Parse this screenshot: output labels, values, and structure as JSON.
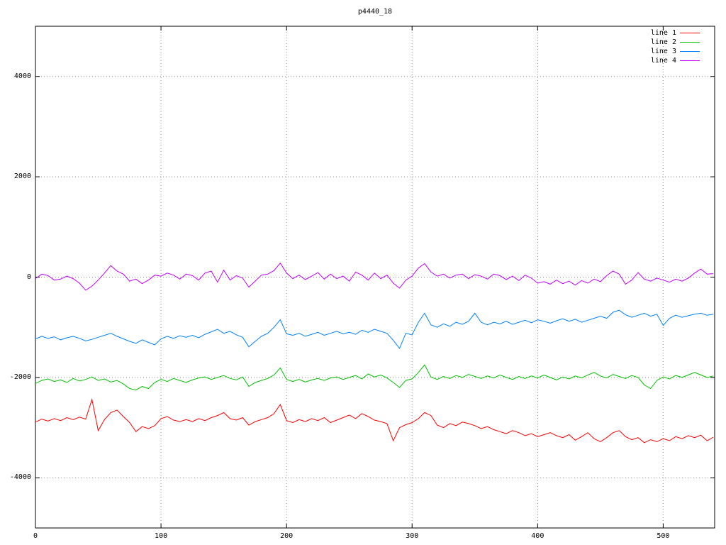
{
  "chart_data": {
    "type": "line",
    "title": "p4440_18",
    "xlabel": "",
    "ylabel": "",
    "xlim": [
      0,
      541
    ],
    "ylim": [
      -5000,
      5000
    ],
    "xticks": [
      0,
      100,
      200,
      300,
      400,
      500
    ],
    "yticks": [
      -4000,
      -2000,
      0,
      2000,
      4000
    ],
    "grid": "dotted",
    "legend_position": "top-right-inside",
    "background_color": "#ffffff",
    "border_color": "#000000",
    "grid_color": "#888888",
    "x_start": 0,
    "x_step": 5,
    "series": [
      {
        "name": "line 1",
        "color": "#ff0000",
        "values": [
          -2890,
          -2830,
          -2870,
          -2820,
          -2860,
          -2800,
          -2840,
          -2790,
          -2830,
          -2440,
          -3060,
          -2840,
          -2700,
          -2650,
          -2780,
          -2900,
          -3080,
          -2980,
          -3020,
          -2960,
          -2820,
          -2780,
          -2850,
          -2880,
          -2840,
          -2880,
          -2820,
          -2860,
          -2800,
          -2760,
          -2700,
          -2820,
          -2850,
          -2800,
          -2950,
          -2880,
          -2840,
          -2800,
          -2720,
          -2540,
          -2860,
          -2900,
          -2840,
          -2880,
          -2820,
          -2860,
          -2800,
          -2900,
          -2850,
          -2800,
          -2750,
          -2820,
          -2720,
          -2780,
          -2850,
          -2880,
          -2920,
          -3260,
          -3000,
          -2940,
          -2900,
          -2820,
          -2700,
          -2760,
          -2950,
          -3000,
          -2920,
          -2960,
          -2890,
          -2920,
          -2960,
          -3020,
          -2980,
          -3040,
          -3080,
          -3120,
          -3060,
          -3100,
          -3160,
          -3120,
          -3180,
          -3140,
          -3100,
          -3160,
          -3200,
          -3140,
          -3250,
          -3180,
          -3100,
          -3220,
          -3280,
          -3200,
          -3100,
          -3060,
          -3180,
          -3240,
          -3200,
          -3300,
          -3240,
          -3280,
          -3220,
          -3260,
          -3180,
          -3220,
          -3160,
          -3200,
          -3150,
          -3260,
          -3190
        ]
      },
      {
        "name": "line 2",
        "color": "#00c000",
        "values": [
          -2120,
          -2060,
          -2030,
          -2080,
          -2050,
          -2100,
          -2020,
          -2070,
          -2040,
          -1990,
          -2060,
          -2030,
          -2090,
          -2060,
          -2130,
          -2220,
          -2250,
          -2180,
          -2220,
          -2100,
          -2040,
          -2080,
          -2020,
          -2060,
          -2100,
          -2050,
          -2010,
          -1990,
          -2040,
          -2000,
          -1960,
          -2020,
          -2050,
          -1990,
          -2180,
          -2100,
          -2060,
          -2020,
          -1950,
          -1810,
          -2040,
          -2080,
          -2040,
          -2090,
          -2050,
          -2020,
          -2060,
          -2010,
          -1990,
          -2040,
          -2000,
          -1960,
          -2030,
          -1930,
          -1990,
          -1950,
          -2010,
          -2100,
          -2200,
          -2060,
          -2030,
          -1900,
          -1750,
          -1990,
          -2040,
          -1980,
          -2020,
          -1960,
          -2000,
          -1940,
          -1980,
          -2020,
          -1970,
          -2010,
          -1950,
          -2000,
          -2040,
          -1980,
          -2020,
          -1970,
          -2010,
          -1950,
          -2000,
          -2050,
          -1990,
          -2030,
          -1970,
          -2010,
          -1950,
          -1900,
          -1970,
          -2010,
          -1940,
          -1980,
          -2020,
          -1960,
          -2000,
          -2150,
          -2220,
          -2060,
          -1990,
          -2030,
          -1960,
          -2000,
          -1950,
          -1900,
          -1950,
          -2000,
          -1970
        ]
      },
      {
        "name": "line 3",
        "color": "#0080ff",
        "values": [
          -1230,
          -1180,
          -1220,
          -1190,
          -1250,
          -1210,
          -1180,
          -1220,
          -1270,
          -1240,
          -1200,
          -1160,
          -1120,
          -1180,
          -1230,
          -1280,
          -1320,
          -1250,
          -1300,
          -1350,
          -1230,
          -1180,
          -1220,
          -1170,
          -1200,
          -1160,
          -1210,
          -1140,
          -1090,
          -1040,
          -1120,
          -1080,
          -1150,
          -1200,
          -1390,
          -1280,
          -1180,
          -1120,
          -1000,
          -850,
          -1130,
          -1160,
          -1120,
          -1180,
          -1140,
          -1100,
          -1160,
          -1120,
          -1080,
          -1130,
          -1100,
          -1140,
          -1060,
          -1100,
          -1040,
          -1080,
          -1120,
          -1260,
          -1420,
          -1120,
          -1150,
          -900,
          -720,
          -950,
          -1000,
          -930,
          -980,
          -900,
          -940,
          -880,
          -720,
          -900,
          -950,
          -900,
          -930,
          -880,
          -940,
          -900,
          -860,
          -910,
          -850,
          -880,
          -920,
          -870,
          -830,
          -880,
          -840,
          -900,
          -860,
          -820,
          -780,
          -820,
          -700,
          -660,
          -750,
          -800,
          -760,
          -720,
          -780,
          -740,
          -960,
          -820,
          -760,
          -800,
          -770,
          -740,
          -720,
          -760,
          -740
        ]
      },
      {
        "name": "line 4",
        "color": "#c000ff",
        "values": [
          -30,
          60,
          30,
          -60,
          -40,
          20,
          -30,
          -120,
          -260,
          -180,
          -60,
          80,
          230,
          120,
          60,
          -80,
          -40,
          -130,
          -60,
          40,
          20,
          80,
          40,
          -40,
          60,
          30,
          -60,
          80,
          120,
          -100,
          140,
          -60,
          30,
          -20,
          -200,
          -80,
          40,
          60,
          130,
          280,
          80,
          -30,
          40,
          -50,
          20,
          90,
          -40,
          60,
          -30,
          20,
          -80,
          100,
          40,
          -60,
          80,
          -30,
          40,
          -120,
          -220,
          -60,
          20,
          180,
          270,
          100,
          20,
          60,
          -20,
          40,
          60,
          -30,
          50,
          20,
          -40,
          60,
          30,
          -50,
          20,
          -70,
          40,
          -20,
          -120,
          -90,
          -140,
          -60,
          -130,
          -80,
          -160,
          -70,
          -120,
          -40,
          -90,
          30,
          120,
          60,
          -140,
          -60,
          90,
          -40,
          -80,
          -20,
          -60,
          -100,
          -40,
          -80,
          -20,
          80,
          160,
          60,
          70
        ]
      }
    ]
  },
  "legend": {
    "items": [
      {
        "label": "line 1"
      },
      {
        "label": "line 2"
      },
      {
        "label": "line 3"
      },
      {
        "label": "line 4"
      }
    ]
  }
}
